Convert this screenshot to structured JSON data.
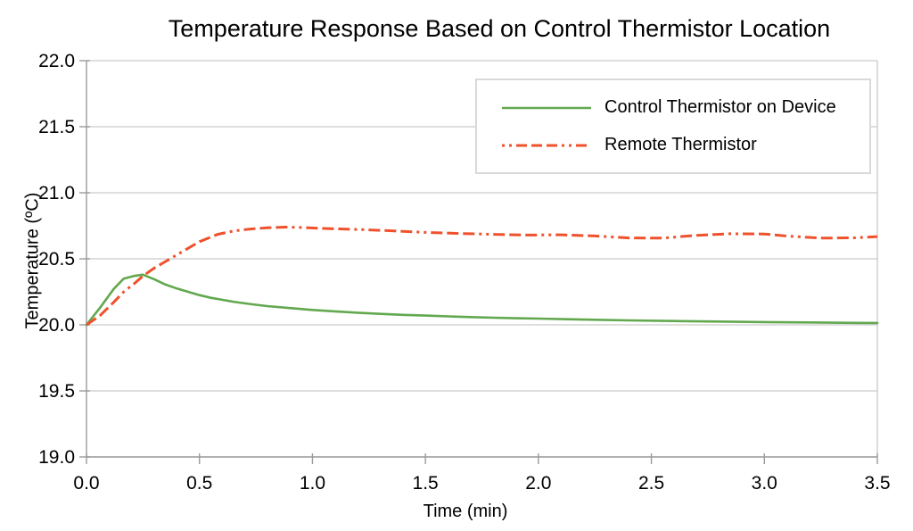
{
  "chart_data": {
    "type": "line",
    "title": "Temperature Response Based on Control Thermistor Location",
    "xlabel": "Time (min)",
    "ylabel": "Temperature (ºC)",
    "xlim": [
      0.0,
      3.5
    ],
    "ylim": [
      19.0,
      22.0
    ],
    "x_tick_labels": [
      "0.0",
      "0.5",
      "1.0",
      "1.5",
      "2.0",
      "2.5",
      "3.0",
      "3.5"
    ],
    "y_tick_labels": [
      "19.0",
      "19.5",
      "20.0",
      "20.5",
      "21.0",
      "21.5",
      "22.0"
    ],
    "grid": "horizontal-only",
    "grid_color": "#c9c9c9",
    "axis_color": "#9b9b9b",
    "text_color": "#000000",
    "legend_position": "top-right",
    "legend_border_color": "#d9d9d9",
    "series": [
      {
        "name": "Control Thermistor on Device",
        "color": "#62a84f",
        "style": "solid",
        "points": [
          [
            0.0,
            20.0
          ],
          [
            0.06,
            20.13
          ],
          [
            0.12,
            20.27
          ],
          [
            0.165,
            20.35
          ],
          [
            0.21,
            20.37
          ],
          [
            0.25,
            20.38
          ],
          [
            0.3,
            20.345
          ],
          [
            0.35,
            20.305
          ],
          [
            0.4,
            20.275
          ],
          [
            0.45,
            20.25
          ],
          [
            0.5,
            20.225
          ],
          [
            0.55,
            20.205
          ],
          [
            0.6,
            20.19
          ],
          [
            0.65,
            20.175
          ],
          [
            0.7,
            20.163
          ],
          [
            0.75,
            20.152
          ],
          [
            0.8,
            20.142
          ],
          [
            0.9,
            20.127
          ],
          [
            1.0,
            20.113
          ],
          [
            1.1,
            20.102
          ],
          [
            1.2,
            20.092
          ],
          [
            1.3,
            20.083
          ],
          [
            1.4,
            20.076
          ],
          [
            1.5,
            20.07
          ],
          [
            1.6,
            20.064
          ],
          [
            1.7,
            20.059
          ],
          [
            1.8,
            20.054
          ],
          [
            1.9,
            20.05
          ],
          [
            2.0,
            20.047
          ],
          [
            2.2,
            20.04
          ],
          [
            2.4,
            20.034
          ],
          [
            2.6,
            20.029
          ],
          [
            2.8,
            20.025
          ],
          [
            3.0,
            20.021
          ],
          [
            3.2,
            20.018
          ],
          [
            3.4,
            20.015
          ],
          [
            3.5,
            20.014
          ]
        ]
      },
      {
        "name": "Remote Thermistor",
        "color": "#ef512c",
        "style": "dash-dot-dot",
        "points": [
          [
            0.0,
            20.0
          ],
          [
            0.06,
            20.07
          ],
          [
            0.12,
            20.17
          ],
          [
            0.165,
            20.25
          ],
          [
            0.21,
            20.31
          ],
          [
            0.25,
            20.37
          ],
          [
            0.3,
            20.43
          ],
          [
            0.35,
            20.48
          ],
          [
            0.42,
            20.55
          ],
          [
            0.5,
            20.63
          ],
          [
            0.58,
            20.685
          ],
          [
            0.65,
            20.71
          ],
          [
            0.72,
            20.725
          ],
          [
            0.8,
            20.735
          ],
          [
            0.88,
            20.74
          ],
          [
            0.95,
            20.737
          ],
          [
            1.05,
            20.73
          ],
          [
            1.2,
            20.722
          ],
          [
            1.35,
            20.712
          ],
          [
            1.5,
            20.7
          ],
          [
            1.65,
            20.692
          ],
          [
            1.8,
            20.685
          ],
          [
            1.95,
            20.68
          ],
          [
            2.1,
            20.682
          ],
          [
            2.25,
            20.673
          ],
          [
            2.4,
            20.658
          ],
          [
            2.55,
            20.657
          ],
          [
            2.7,
            20.678
          ],
          [
            2.85,
            20.69
          ],
          [
            3.0,
            20.688
          ],
          [
            3.1,
            20.672
          ],
          [
            3.25,
            20.657
          ],
          [
            3.4,
            20.659
          ],
          [
            3.5,
            20.668
          ]
        ]
      }
    ]
  }
}
